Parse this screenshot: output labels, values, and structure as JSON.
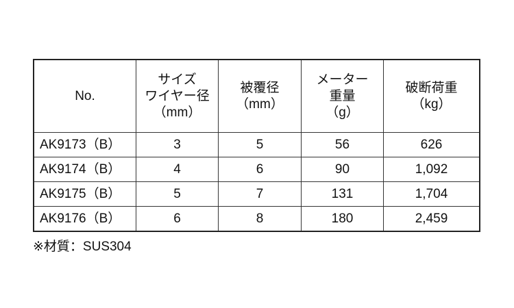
{
  "headers": [
    {
      "lines": [
        "No."
      ]
    },
    {
      "lines": [
        "サイズ",
        "ワイヤー径",
        "（mm）"
      ]
    },
    {
      "lines": [
        "被覆径",
        "（mm）"
      ]
    },
    {
      "lines": [
        "メーター",
        "重量",
        "（g）"
      ]
    },
    {
      "lines": [
        "破断荷重",
        "（kg）"
      ]
    }
  ],
  "rows": [
    [
      "AK9173（B）",
      "3",
      "5",
      "56",
      "626"
    ],
    [
      "AK9174（B）",
      "4",
      "6",
      "90",
      "1,092"
    ],
    [
      "AK9175（B）",
      "5",
      "7",
      "131",
      "1,704"
    ],
    [
      "AK9176（B）",
      "6",
      "8",
      "180",
      "2,459"
    ]
  ],
  "note": "※材質：SUS304"
}
